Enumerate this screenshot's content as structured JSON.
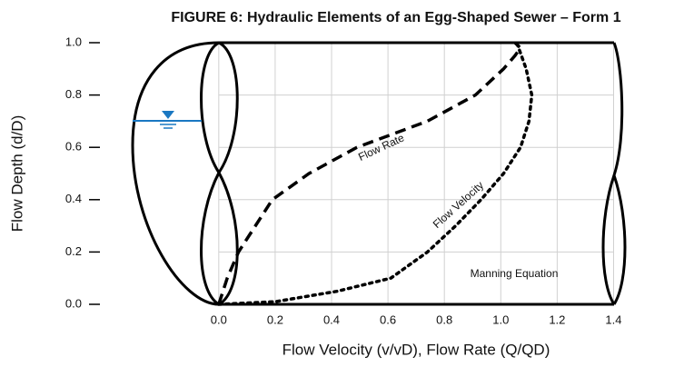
{
  "chart_data": {
    "type": "line",
    "title": "FIGURE 6:  Hydraulic Elements of an Egg-Shaped Sewer – Form 1",
    "x_label": "Flow Velocity (v/vD), Flow Rate (Q/QD)",
    "y_label": "Flow Depth (d/D)",
    "annotations": [
      "Flow Rate",
      "Flow Velocity",
      "Manning Equation"
    ],
    "xlim": [
      -0.46,
      1.45
    ],
    "ylim": [
      0,
      1.0
    ],
    "xticks": [
      {
        "value": 0,
        "label": "0.0"
      },
      0.2,
      0.4,
      0.6,
      0.8,
      {
        "value": 1,
        "label": "1.0"
      },
      1.2,
      1.4
    ],
    "yticks": [
      {
        "value": 0,
        "label": "0.0"
      },
      0.2,
      0.4,
      0.6,
      0.8,
      {
        "value": 1,
        "label": "1.0"
      }
    ],
    "grid": true,
    "series": [
      {
        "name": "Flow Rate",
        "color": "#000000",
        "dash": "dashed",
        "x": [
          0,
          0.03,
          0.07,
          0.19,
          0.32,
          0.49,
          0.74,
          0.91,
          1.01,
          1.05,
          1.07,
          1.05
        ],
        "values": [
          0,
          0.1,
          0.2,
          0.4,
          0.5,
          0.6,
          0.7,
          0.8,
          0.9,
          0.95,
          0.98,
          1.0
        ]
      },
      {
        "name": "Flow Velocity",
        "color": "#000000",
        "dash": "dotted",
        "x": [
          0,
          0.2,
          0.42,
          0.61,
          0.74,
          0.84,
          0.93,
          1.01,
          1.07,
          1.1,
          1.11,
          1.09,
          1.06
        ],
        "values": [
          0,
          0.01,
          0.05,
          0.1,
          0.2,
          0.3,
          0.4,
          0.5,
          0.6,
          0.7,
          0.8,
          0.9,
          0.99
        ]
      }
    ]
  }
}
